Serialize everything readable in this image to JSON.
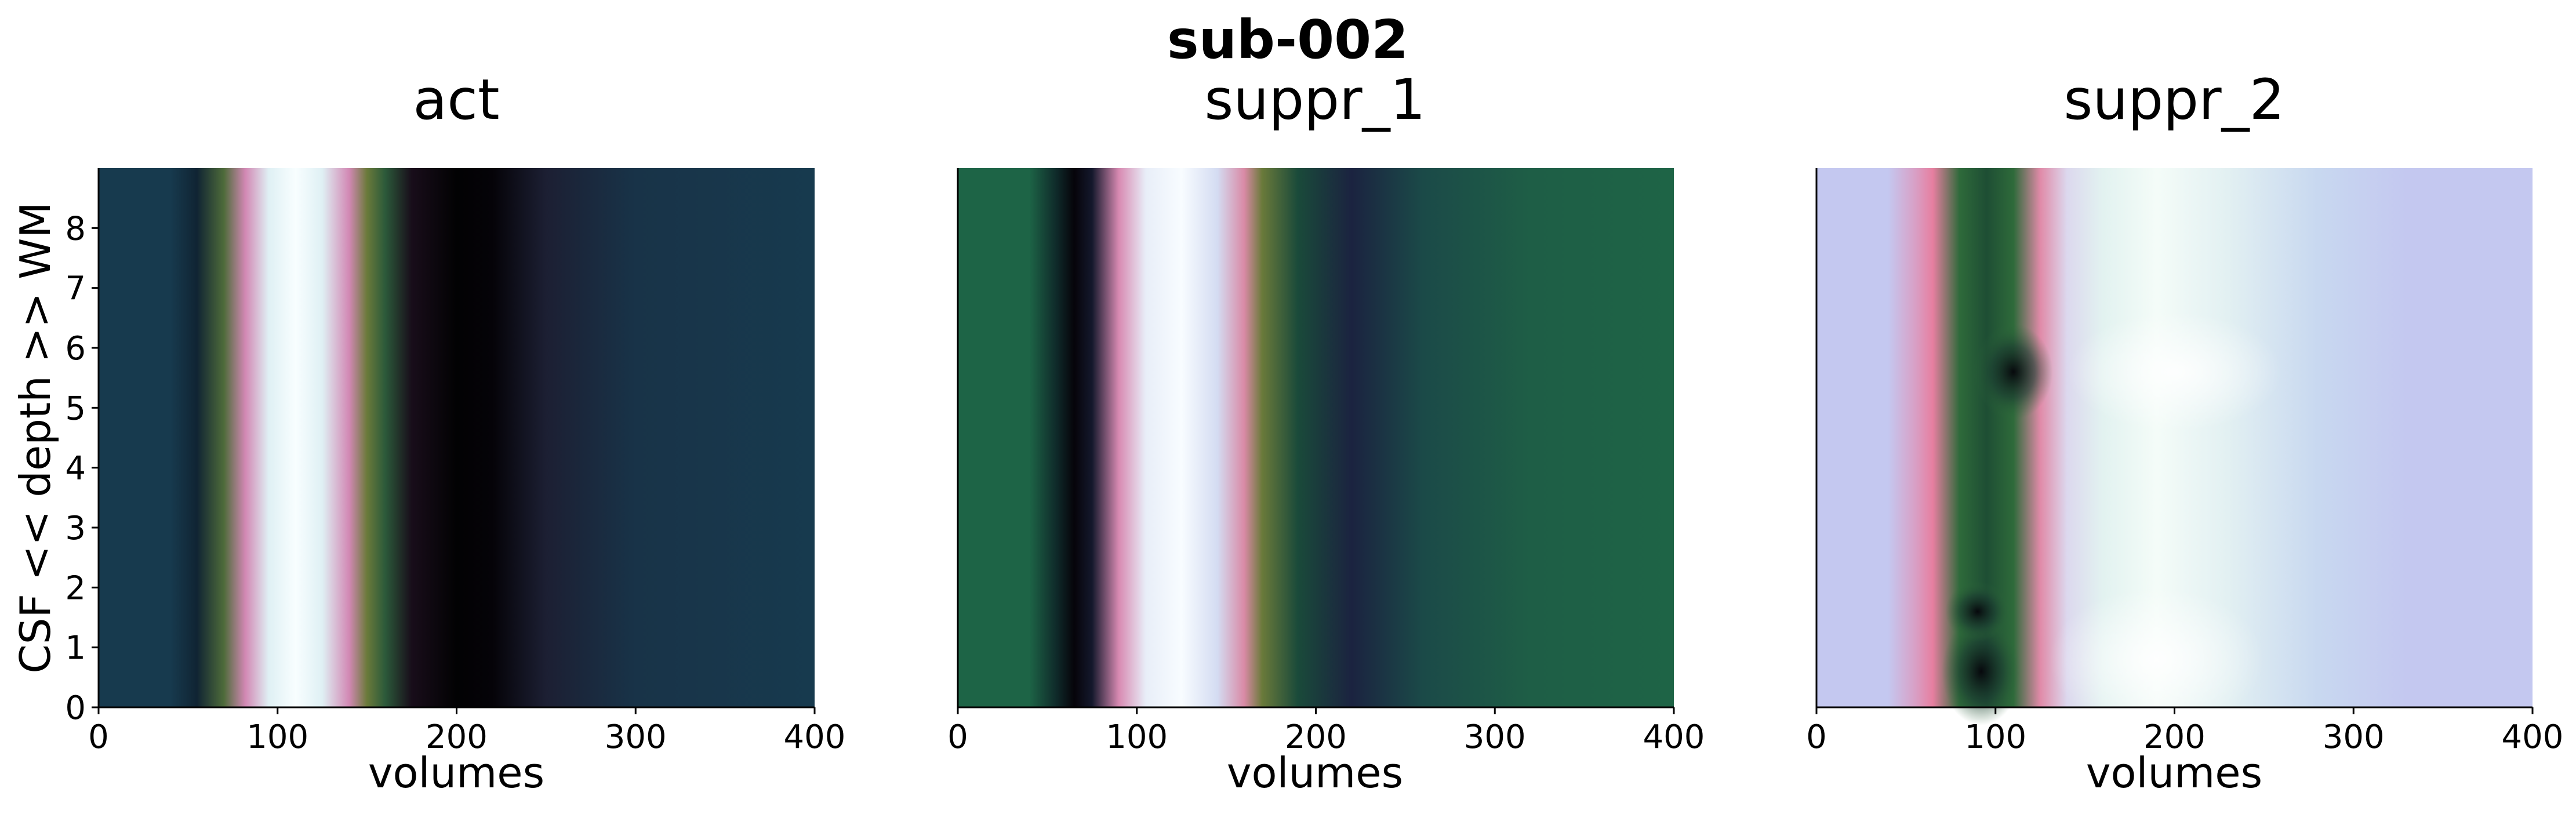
{
  "title": "sub-002",
  "xlabel": "volumes",
  "ylabel": "CSF << depth >> WM",
  "chart_data": [
    {
      "type": "heatmap",
      "title": "act",
      "xlabel": "volumes",
      "ylabel": "CSF << depth >> WM",
      "xlim": [
        0,
        400
      ],
      "ylim": [
        0,
        9
      ],
      "xticks": [
        0,
        100,
        200,
        300,
        400
      ],
      "yticks": [
        0,
        1,
        2,
        3,
        4,
        5,
        6,
        7,
        8
      ],
      "colormap": "cubehelix (dark blue → black → magenta → white)",
      "colors": [
        "#173a4e",
        "#000000",
        "#2d6b2d",
        "#d77fae",
        "#f3fbff"
      ],
      "profile_volumes": [
        0,
        40,
        55,
        70,
        82,
        95,
        110,
        125,
        140,
        150,
        160,
        175,
        200,
        220,
        250,
        300,
        400
      ],
      "profile_colors": [
        "#173a4e",
        "#173a4e",
        "#102433",
        "#4e6b3a",
        "#d288b4",
        "#dff0f4",
        "#f8feff",
        "#dff0f4",
        "#d288b4",
        "#6a7a3a",
        "#2c5a3a",
        "#180d1a",
        "#020203",
        "#050308",
        "#1c1f33",
        "#183348",
        "#173a4e"
      ]
    },
    {
      "type": "heatmap",
      "title": "suppr_1",
      "xlabel": "volumes",
      "xlim": [
        0,
        400
      ],
      "ylim": [
        0,
        9
      ],
      "xticks": [
        0,
        100,
        200,
        300,
        400
      ],
      "colormap": "cubehelix (green → black → magenta → white)",
      "colors": [
        "#1f6347",
        "#000000",
        "#d77fae",
        "#f3fbff"
      ],
      "profile_volumes": [
        0,
        40,
        55,
        65,
        75,
        90,
        105,
        125,
        145,
        160,
        170,
        190,
        220,
        260,
        320,
        400
      ],
      "profile_colors": [
        "#1d6446",
        "#1d6446",
        "#0f2a2a",
        "#06040a",
        "#14182c",
        "#d88ab2",
        "#e8eef8",
        "#f8fcff",
        "#d4dcf2",
        "#d98aa6",
        "#6a7a3a",
        "#1a4a3a",
        "#1b2340",
        "#1b4a48",
        "#1e5e46",
        "#1e6446"
      ]
    },
    {
      "type": "heatmap",
      "title": "suppr_2",
      "xlabel": "volumes",
      "xlim": [
        0,
        400
      ],
      "ylim": [
        0,
        9
      ],
      "xticks": [
        0,
        100,
        200,
        300,
        400
      ],
      "colormap": "cubehelix (periwinkle → pink → green → black → white)",
      "colors": [
        "#c4c8f0",
        "#d79bc6",
        "#3a7a3a",
        "#000000",
        "#f6fff8"
      ],
      "profile_volumes": [
        0,
        40,
        55,
        65,
        80,
        95,
        110,
        125,
        140,
        160,
        190,
        230,
        280,
        330,
        400
      ],
      "profile_colors": [
        "#c4c8f0",
        "#c4c8f0",
        "#d8a0c6",
        "#e67fa0",
        "#2e6a3a",
        "#1e4e34",
        "#2e6a3a",
        "#e08aa8",
        "#dcd8ee",
        "#e2f2f0",
        "#f4fcf8",
        "#e2f0f2",
        "#c8d8f0",
        "#c4c8f0",
        "#c4c8f0"
      ]
    }
  ]
}
